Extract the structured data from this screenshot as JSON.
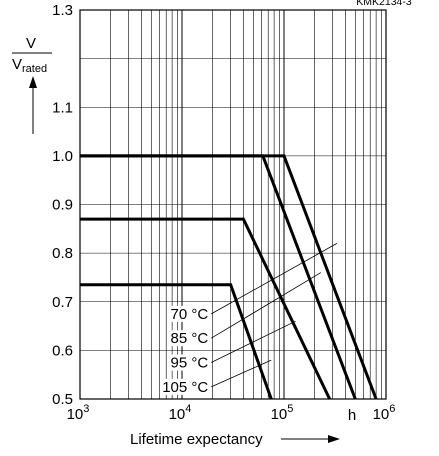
{
  "chart_data": {
    "type": "line",
    "ref_code": "KMK2134-3",
    "x_scale": "log",
    "xlim": [
      1000,
      1000000
    ],
    "ylim": [
      0.5,
      1.3
    ],
    "x_ticks": [
      {
        "value": 1000,
        "base": "10",
        "exp": "3"
      },
      {
        "value": 10000,
        "base": "10",
        "exp": "4"
      },
      {
        "value": 100000,
        "base": "10",
        "exp": "5"
      },
      {
        "value": 1000000,
        "base": "10",
        "exp": "6"
      }
    ],
    "y_ticks": [
      {
        "value": 0.5,
        "label": "0.5"
      },
      {
        "value": 0.6,
        "label": "0.6"
      },
      {
        "value": 0.7,
        "label": "0.7"
      },
      {
        "value": 0.8,
        "label": "0.8"
      },
      {
        "value": 0.9,
        "label": "0.9"
      },
      {
        "value": 1.0,
        "label": "1.0"
      },
      {
        "value": 1.1,
        "label": "1.1"
      },
      {
        "value": 1.3,
        "label": "1.3"
      }
    ],
    "xlabel": "Lifetime expectancy",
    "x_unit": "h",
    "ylabel": {
      "numerator": "V",
      "denominator": "V",
      "denominator_sub": "rated"
    },
    "grid": true,
    "series": [
      {
        "name": "70 °C",
        "points": [
          [
            1000,
            1.0
          ],
          [
            100000,
            1.0
          ],
          [
            800000,
            0.5
          ]
        ]
      },
      {
        "name": "85 °C",
        "points": [
          [
            1000,
            1.0
          ],
          [
            62000,
            1.0
          ],
          [
            500000,
            0.5
          ]
        ]
      },
      {
        "name": "95 °C",
        "points": [
          [
            1000,
            0.87
          ],
          [
            40000,
            0.87
          ],
          [
            280000,
            0.5
          ]
        ]
      },
      {
        "name": "105 °C",
        "points": [
          [
            1000,
            0.735
          ],
          [
            30000,
            0.735
          ],
          [
            75000,
            0.5
          ]
        ]
      }
    ],
    "annotations": [
      {
        "text": "70 °C",
        "label_at": [
          11000,
          0.675
        ],
        "line_to": [
          330000,
          0.82
        ]
      },
      {
        "text": "85 °C",
        "label_at": [
          11000,
          0.625
        ],
        "line_to": [
          230000,
          0.76
        ]
      },
      {
        "text": "95 °C",
        "label_at": [
          11000,
          0.575
        ],
        "line_to": [
          130000,
          0.66
        ]
      },
      {
        "text": "105 °C",
        "label_at": [
          11000,
          0.525
        ],
        "line_to": [
          75000,
          0.58
        ]
      }
    ]
  }
}
